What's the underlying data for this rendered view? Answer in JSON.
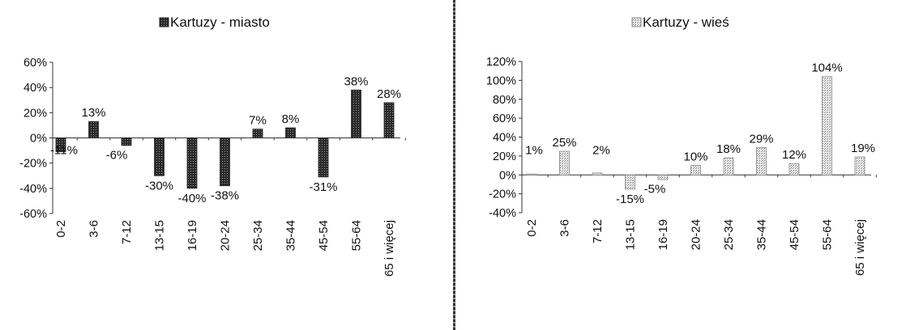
{
  "chart_data": [
    {
      "type": "bar",
      "title": "Kartuzy - miasto",
      "legend_icon": "dark-hatched-square-icon",
      "categories": [
        "0-2",
        "3-6",
        "7-12",
        "13-15",
        "16-19",
        "20-24",
        "25-34",
        "35-44",
        "45-54",
        "55-64",
        "65 i więcej"
      ],
      "series": [
        {
          "name": "Kartuzy - miasto",
          "values": [
            -11,
            13,
            -6,
            -30,
            -40,
            -38,
            7,
            8,
            -31,
            38,
            28
          ]
        }
      ],
      "data_labels": [
        "-11%",
        "13%",
        "-6%",
        "-30%",
        "-40%",
        "-38%",
        "7%",
        "8%",
        "-31%",
        "38%",
        "28%"
      ],
      "yticks": [
        60,
        40,
        20,
        0,
        -20,
        -40,
        -60
      ],
      "ytick_labels": [
        "60%",
        "40%",
        "20%",
        "0%",
        "-20%",
        "-40%",
        "-60%"
      ],
      "ylim": [
        -60,
        60
      ],
      "xlabel": "",
      "ylabel": "",
      "grid": false,
      "bar_color": "#3a3a3a",
      "legend_position": "top-center"
    },
    {
      "type": "bar",
      "title": "Kartuzy - wieś",
      "legend_icon": "light-dotted-square-icon",
      "categories": [
        "0-2",
        "3-6",
        "7-12",
        "13-15",
        "16-19",
        "20-24",
        "25-34",
        "35-44",
        "45-54",
        "55-64",
        "65 i więcej"
      ],
      "series": [
        {
          "name": "Kartuzy - wieś",
          "values": [
            1,
            25,
            2,
            -15,
            -5,
            10,
            18,
            29,
            12,
            104,
            19
          ]
        }
      ],
      "data_labels": [
        "1%",
        "25%",
        "2%",
        "-15%",
        "-5%",
        "10%",
        "18%",
        "29%",
        "12%",
        "104%",
        "19%"
      ],
      "yticks": [
        120,
        100,
        80,
        60,
        40,
        20,
        0,
        -20,
        -40
      ],
      "ytick_labels": [
        "120%",
        "100%",
        "80%",
        "60%",
        "40%",
        "20%",
        "0%",
        "-20%",
        "-40%"
      ],
      "ylim": [
        -40,
        120
      ],
      "xlabel": "",
      "ylabel": "",
      "grid": false,
      "bar_color": "#cfcfcf",
      "legend_position": "top-center"
    }
  ]
}
